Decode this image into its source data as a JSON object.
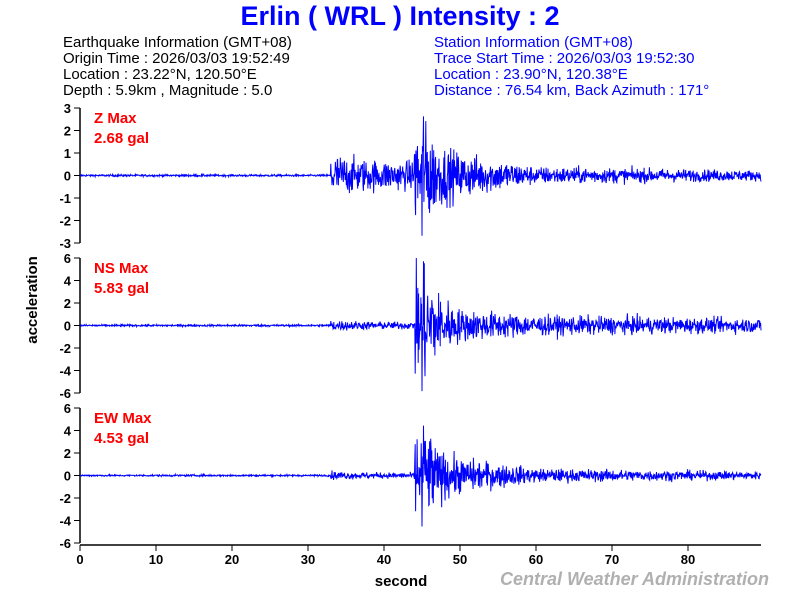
{
  "title": "Erlin  ( WRL )  Intensity : 2",
  "earthquake_info": {
    "heading": "Earthquake Information  (GMT+08)",
    "origin_time": "Origin Time : 2026/03/03 19:52:49",
    "location": "Location : 23.22°N, 120.50°E",
    "depth_magnitude": "Depth : 5.9km , Magnitude : 5.0"
  },
  "station_info": {
    "heading": "Station Information  (GMT+08)",
    "trace_start": "Trace Start Time : 2026/03/03 19:52:30",
    "location": "Location : 23.90°N, 120.38°E",
    "distance": "Distance : 76.54 km, Back Azimuth : 171°"
  },
  "credit": "Central Weather Administration",
  "chart_data": {
    "type": "line",
    "xlabel": "second",
    "ylabel": "acceleration",
    "xlim": [
      0,
      89.6
    ],
    "xticks": [
      0,
      10,
      20,
      30,
      40,
      50,
      60,
      70,
      80
    ],
    "line_color": "#0000ff",
    "label_color": "#ff0000",
    "p_arrival_s": 33,
    "s_arrival_s": 45,
    "panels": [
      {
        "component": "Z",
        "label": "Z Max",
        "max_label": "2.68 gal",
        "peak": 2.68,
        "ylim": [
          -3,
          3
        ],
        "yticks": [
          3,
          2,
          1,
          0,
          -1,
          -2,
          -3
        ],
        "noise": 0.04,
        "p_amp": 0.9,
        "coda": [
          [
            50,
            0.9
          ],
          [
            60,
            0.35
          ],
          [
            90,
            0.2
          ]
        ]
      },
      {
        "component": "NS",
        "label": "NS Max",
        "max_label": "5.83 gal",
        "peak": 5.83,
        "ylim": [
          -6,
          6
        ],
        "yticks": [
          6,
          4,
          2,
          0,
          -2,
          -4,
          -6
        ],
        "noise": 0.08,
        "p_amp": 0.45,
        "coda": [
          [
            50,
            1.3
          ],
          [
            60,
            0.8
          ],
          [
            90,
            0.55
          ]
        ]
      },
      {
        "component": "EW",
        "label": "EW Max",
        "max_label": "4.53 gal",
        "peak": 4.53,
        "ylim": [
          -6,
          6
        ],
        "yticks": [
          6,
          4,
          2,
          0,
          -2,
          -4,
          -6
        ],
        "noise": 0.07,
        "p_amp": 0.35,
        "coda": [
          [
            50,
            1.4
          ],
          [
            60,
            0.55
          ],
          [
            90,
            0.3
          ]
        ]
      }
    ]
  }
}
